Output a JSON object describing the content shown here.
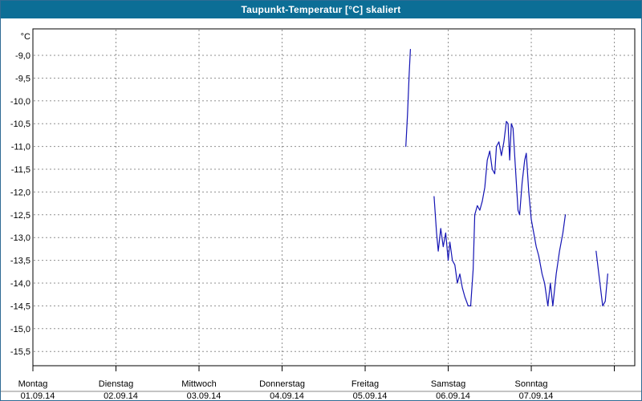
{
  "window": {
    "title": "Taupunkt-Temperatur [°C] skaliert"
  },
  "chart_data": {
    "type": "line",
    "title": "Taupunkt-Temperatur [°C] skaliert",
    "unit_label": "°C",
    "line_color": "#1414b4",
    "grid_color": "#909090",
    "axis_color": "#000000",
    "grid": true,
    "legend_position": "none",
    "ylim": [
      -15.8,
      -8.4
    ],
    "x_axis_days": 7.246,
    "y_ticks": [
      {
        "value": -9.0,
        "label": "-9,0"
      },
      {
        "value": -9.5,
        "label": "-9,5"
      },
      {
        "value": -10.0,
        "label": "-10,0"
      },
      {
        "value": -10.5,
        "label": "-10,5"
      },
      {
        "value": -11.0,
        "label": "-11,0"
      },
      {
        "value": -11.5,
        "label": "-11,5"
      },
      {
        "value": -12.0,
        "label": "-12,0"
      },
      {
        "value": -12.5,
        "label": "-12,5"
      },
      {
        "value": -13.0,
        "label": "-13,0"
      },
      {
        "value": -13.5,
        "label": "-13,5"
      },
      {
        "value": -14.0,
        "label": "-14,0"
      },
      {
        "value": -14.5,
        "label": "-14,5"
      },
      {
        "value": -15.0,
        "label": "-15,0"
      },
      {
        "value": -15.5,
        "label": "-15,5"
      }
    ],
    "x_ticks": [
      {
        "day_offset": 0,
        "weekday": "Montag",
        "date": "01.09.14"
      },
      {
        "day_offset": 1,
        "weekday": "Dienstag",
        "date": "02.09.14"
      },
      {
        "day_offset": 2,
        "weekday": "Mittwoch",
        "date": "03.09.14"
      },
      {
        "day_offset": 3,
        "weekday": "Donnerstag",
        "date": "04.09.14"
      },
      {
        "day_offset": 4,
        "weekday": "Freitag",
        "date": "05.09.14"
      },
      {
        "day_offset": 5,
        "weekday": "Samstag",
        "date": "06.09.14"
      },
      {
        "day_offset": 6,
        "weekday": "Sonntag",
        "date": "07.09.14"
      }
    ],
    "series": [
      {
        "name": "Taupunkt-Temperatur",
        "segments": [
          [
            [
              4.49,
              -11.0
            ],
            [
              4.51,
              -10.3
            ],
            [
              4.53,
              -9.4
            ],
            [
              4.545,
              -8.87
            ]
          ],
          [
            [
              4.83,
              -12.1
            ],
            [
              4.86,
              -12.9
            ],
            [
              4.88,
              -13.3
            ],
            [
              4.91,
              -12.8
            ],
            [
              4.94,
              -13.2
            ],
            [
              4.97,
              -12.9
            ],
            [
              5.0,
              -13.5
            ],
            [
              5.02,
              -13.1
            ],
            [
              5.05,
              -13.5
            ],
            [
              5.08,
              -13.6
            ],
            [
              5.11,
              -14.0
            ],
            [
              5.14,
              -13.8
            ],
            [
              5.17,
              -14.1
            ],
            [
              5.2,
              -14.3
            ],
            [
              5.24,
              -14.5
            ],
            [
              5.27,
              -14.5
            ],
            [
              5.3,
              -13.7
            ],
            [
              5.32,
              -12.5
            ],
            [
              5.35,
              -12.3
            ],
            [
              5.38,
              -12.4
            ],
            [
              5.41,
              -12.2
            ],
            [
              5.44,
              -11.9
            ],
            [
              5.47,
              -11.3
            ],
            [
              5.5,
              -11.1
            ],
            [
              5.53,
              -11.5
            ],
            [
              5.56,
              -11.6
            ],
            [
              5.58,
              -11.0
            ],
            [
              5.61,
              -10.9
            ],
            [
              5.64,
              -11.2
            ],
            [
              5.67,
              -10.9
            ],
            [
              5.7,
              -10.45
            ],
            [
              5.72,
              -10.5
            ],
            [
              5.74,
              -11.3
            ],
            [
              5.76,
              -10.5
            ],
            [
              5.78,
              -10.6
            ],
            [
              5.81,
              -11.5
            ],
            [
              5.84,
              -12.4
            ],
            [
              5.86,
              -12.5
            ],
            [
              5.89,
              -11.8
            ],
            [
              5.92,
              -11.3
            ],
            [
              5.94,
              -11.15
            ],
            [
              5.97,
              -12.0
            ],
            [
              6.0,
              -12.6
            ],
            [
              6.03,
              -12.9
            ],
            [
              6.06,
              -13.2
            ],
            [
              6.09,
              -13.4
            ],
            [
              6.13,
              -13.8
            ],
            [
              6.16,
              -14.0
            ],
            [
              6.2,
              -14.5
            ],
            [
              6.23,
              -14.0
            ],
            [
              6.26,
              -14.5
            ],
            [
              6.3,
              -13.8
            ],
            [
              6.34,
              -13.3
            ],
            [
              6.38,
              -12.9
            ],
            [
              6.41,
              -12.5
            ]
          ],
          [
            [
              6.78,
              -13.3
            ],
            [
              6.82,
              -13.9
            ],
            [
              6.86,
              -14.5
            ],
            [
              6.89,
              -14.4
            ],
            [
              6.92,
              -13.8
            ]
          ]
        ]
      }
    ]
  }
}
